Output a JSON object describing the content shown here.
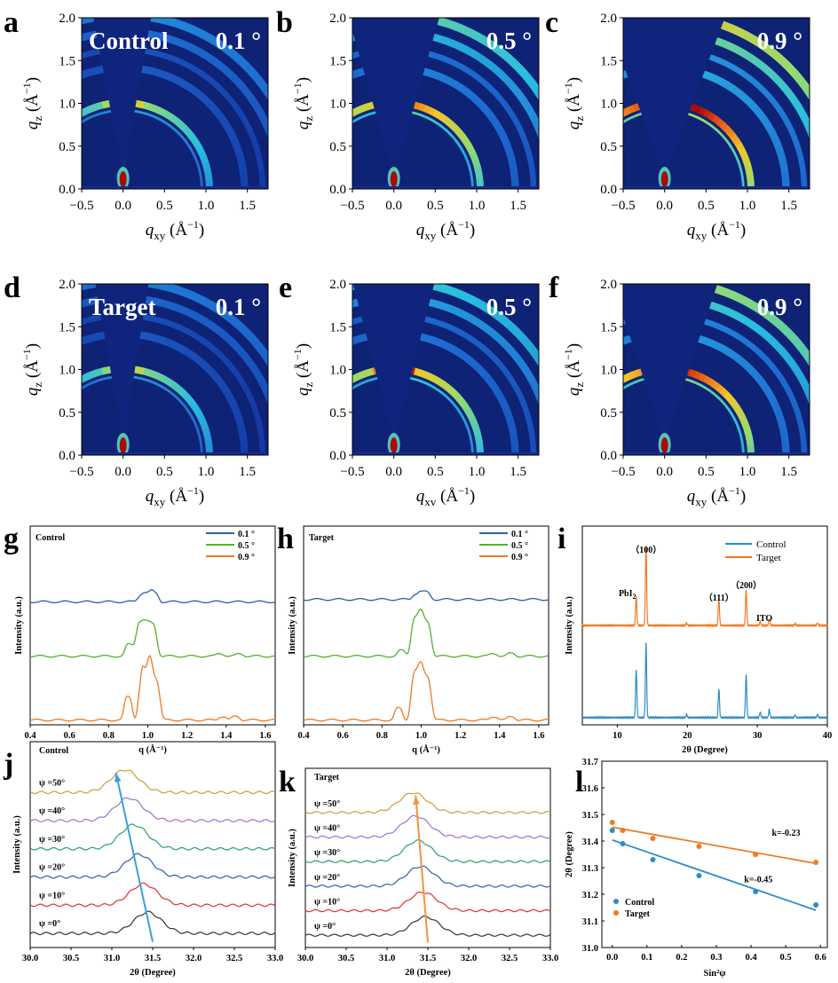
{
  "chart_data": [
    {
      "panel": "a",
      "type": "heatmap",
      "overlay": [
        "Control",
        "0.1 °"
      ],
      "incidence_deg": 0.1,
      "intensity": 0.35,
      "xlabel": "q_xy (Å^-1)",
      "ylabel": "q_z (Å^-1)",
      "xlim": [
        -0.5,
        1.75
      ],
      "ylim": [
        0,
        2.0
      ],
      "xticks": [
        "−0.5",
        "0.0",
        "0.5",
        "1.0",
        "1.5"
      ],
      "yticks": [
        "0.0",
        "0.5",
        "1.0",
        "1.5",
        "2.0"
      ]
    },
    {
      "panel": "b",
      "type": "heatmap",
      "overlay": [
        "",
        "0.5 °"
      ],
      "incidence_deg": 0.5,
      "intensity": 0.7,
      "xlabel": "q_xy (Å^-1)",
      "ylabel": "q_z (Å^-1)",
      "xlim": [
        -0.5,
        1.75
      ],
      "ylim": [
        0,
        2.0
      ],
      "xticks": [
        "−0.5",
        "0.0",
        "0.5",
        "1.0",
        "1.5"
      ],
      "yticks": [
        "0.0",
        "0.5",
        "1.0",
        "1.5",
        "2.0"
      ]
    },
    {
      "panel": "c",
      "type": "heatmap",
      "overlay": [
        "",
        "0.9 °"
      ],
      "incidence_deg": 0.9,
      "intensity": 1.0,
      "xlabel": "q_xy (Å^-1)",
      "ylabel": "q_z (Å^-1)",
      "xlim": [
        -0.5,
        1.75
      ],
      "ylim": [
        0,
        2.0
      ],
      "xticks": [
        "−0.5",
        "0.0",
        "0.5",
        "1.0",
        "1.5"
      ],
      "yticks": [
        "0.0",
        "0.5",
        "1.0",
        "1.5",
        "2.0"
      ]
    },
    {
      "panel": "d",
      "type": "heatmap",
      "overlay": [
        "Target",
        "0.1 °"
      ],
      "incidence_deg": 0.1,
      "intensity": 0.3,
      "xlabel": "q_xy (Å^-1)",
      "ylabel": "q_z (Å^-1)",
      "xlim": [
        -0.5,
        1.75
      ],
      "ylim": [
        0,
        2.0
      ],
      "xticks": [
        "−0.5",
        "0.0",
        "0.5",
        "1.0",
        "1.5"
      ],
      "yticks": [
        "0.0",
        "0.5",
        "1.0",
        "1.5",
        "2.0"
      ]
    },
    {
      "panel": "e",
      "type": "heatmap",
      "overlay": [
        "",
        "0.5 °"
      ],
      "incidence_deg": 0.5,
      "intensity": 0.6,
      "xlabel": "q_xv (Å^-1)",
      "ylabel": "q_z (Å^-1)",
      "xlim": [
        -0.5,
        1.75
      ],
      "ylim": [
        0,
        2.0
      ],
      "xticks": [
        "−0.5",
        "0.0",
        "0.5",
        "1.0",
        "1.5"
      ],
      "yticks": [
        "0.0",
        "0.5",
        "1.0",
        "1.5",
        "2.0"
      ]
    },
    {
      "panel": "f",
      "type": "heatmap",
      "overlay": [
        "",
        "0.9 °"
      ],
      "incidence_deg": 0.9,
      "intensity": 0.85,
      "xlabel": "q_xy (Å^-1)",
      "ylabel": "q_z (Å^-1)",
      "xlim": [
        -0.5,
        1.75
      ],
      "ylim": [
        0,
        2.0
      ],
      "xticks": [
        "−0.5",
        "0.0",
        "0.5",
        "1.0",
        "1.5"
      ],
      "yticks": [
        "0.0",
        "0.5",
        "1.0",
        "1.5",
        "2.0"
      ]
    },
    {
      "panel": "g",
      "type": "line",
      "title": "Control",
      "xlabel": "q (Å⁻¹)",
      "ylabel": "Intensity (a.u.)",
      "xlim": [
        0.4,
        1.65
      ],
      "xticks": [
        0.4,
        0.6,
        0.8,
        1.0,
        1.2,
        1.4,
        1.6
      ],
      "legend_position": "top-right",
      "series": [
        {
          "name": "0.1 °",
          "color": "#2e5fa8",
          "offset": 2.6,
          "peaks": [
            [
              0.985,
              0.2,
              0.03
            ],
            [
              1.035,
              0.18,
              0.02
            ]
          ]
        },
        {
          "name": "0.5 °",
          "color": "#55b030",
          "offset": 1.45,
          "peaks": [
            [
              0.905,
              0.25,
              0.02
            ],
            [
              0.965,
              0.75,
              0.025
            ],
            [
              1.02,
              0.7,
              0.025
            ],
            [
              1.37,
              0.06,
              0.02
            ],
            [
              1.47,
              0.05,
              0.02
            ]
          ]
        },
        {
          "name": "0.9 °",
          "color": "#ef7a22",
          "offset": 0.1,
          "peaks": [
            [
              0.9,
              0.5,
              0.02
            ],
            [
              0.96,
              0.3,
              0.015
            ],
            [
              0.99,
              1.05,
              0.025
            ],
            [
              1.035,
              0.9,
              0.025
            ],
            [
              1.38,
              0.08,
              0.02
            ],
            [
              1.45,
              0.08,
              0.02
            ]
          ]
        }
      ]
    },
    {
      "panel": "h",
      "type": "line",
      "title": "Target",
      "xlabel": "q (Å⁻¹)",
      "ylabel": "Intensity (a.u.)",
      "xlim": [
        0.4,
        1.65
      ],
      "xticks": [
        0.4,
        0.6,
        0.8,
        1.0,
        1.2,
        1.4,
        1.6
      ],
      "legend_position": "top-right",
      "series": [
        {
          "name": "0.1 °",
          "color": "#2e5fa8",
          "offset": 2.65,
          "peaks": [
            [
              0.975,
              0.12,
              0.02
            ],
            [
              1.02,
              0.16,
              0.025
            ]
          ]
        },
        {
          "name": "0.5 °",
          "color": "#55b030",
          "offset": 1.45,
          "peaks": [
            [
              0.9,
              0.12,
              0.02
            ],
            [
              0.975,
              0.85,
              0.025
            ],
            [
              1.025,
              0.75,
              0.025
            ],
            [
              1.37,
              0.06,
              0.02
            ],
            [
              1.46,
              0.06,
              0.02
            ]
          ]
        },
        {
          "name": "0.9 °",
          "color": "#ef7a22",
          "offset": 0.1,
          "peaks": [
            [
              0.885,
              0.25,
              0.02
            ],
            [
              0.975,
              1.05,
              0.025
            ],
            [
              1.025,
              0.95,
              0.025
            ],
            [
              1.37,
              0.08,
              0.02
            ],
            [
              1.46,
              0.08,
              0.02
            ]
          ]
        }
      ]
    },
    {
      "panel": "i",
      "type": "line",
      "xlabel": "2θ (Degree)",
      "ylabel": "Intensity (a.u.)",
      "xlim": [
        5,
        40
      ],
      "xticks": [
        10,
        20,
        30,
        40
      ],
      "legend_position": "top-right",
      "annotations": [
        {
          "text": "PbI",
          "sub": "2",
          "x": 12.7
        },
        {
          "text": "（100）",
          "x": 14.1
        },
        {
          "text": "（111）",
          "x": 24.5
        },
        {
          "text": "（200）",
          "x": 28.4
        },
        {
          "text": "ITO",
          "x": 31.0
        }
      ],
      "series": [
        {
          "name": "Control",
          "color": "#2c8dc6",
          "offset": 0.3,
          "peaks": [
            [
              12.7,
              2.0
            ],
            [
              14.1,
              3.1
            ],
            [
              19.9,
              0.12
            ],
            [
              24.5,
              1.2
            ],
            [
              28.4,
              1.75
            ],
            [
              30.4,
              0.22
            ],
            [
              31.7,
              0.35
            ],
            [
              35.4,
              0.1
            ],
            [
              38.6,
              0.12
            ]
          ]
        },
        {
          "name": "Target",
          "color": "#ef7a22",
          "offset": 4.1,
          "peaks": [
            [
              12.7,
              1.2
            ],
            [
              14.1,
              3.3
            ],
            [
              19.9,
              0.1
            ],
            [
              24.5,
              1.1
            ],
            [
              28.4,
              1.45
            ],
            [
              30.4,
              0.15
            ],
            [
              31.7,
              0.3
            ],
            [
              35.4,
              0.08
            ],
            [
              38.6,
              0.1
            ]
          ]
        }
      ]
    },
    {
      "panel": "j",
      "type": "line",
      "title": "Control",
      "xlabel": "2θ (Degree)",
      "ylabel": "Intensity (a.u.)",
      "xlim": [
        30.0,
        33.0
      ],
      "xticks": [
        "30.0",
        "30.5",
        "31.0",
        "31.5",
        "32.0",
        "32.5",
        "33.0"
      ],
      "arrow_color": "#3aa0d8",
      "arrow": [
        [
          31.5,
          0.2
        ],
        [
          31.05,
          6.2
        ]
      ],
      "series": [
        {
          "name": "ψ =0°",
          "color": "#333333",
          "offset": 0.5,
          "peak": 31.44,
          "height": 0.75
        },
        {
          "name": "ψ =10°",
          "color": "#e03030",
          "offset": 1.5,
          "peak": 31.39,
          "height": 0.75
        },
        {
          "name": "ψ =20°",
          "color": "#2e5fa8",
          "offset": 2.5,
          "peak": 31.33,
          "height": 0.8
        },
        {
          "name": "ψ =30°",
          "color": "#2aa060",
          "offset": 3.5,
          "peak": 31.27,
          "height": 0.85
        },
        {
          "name": "ψ =40°",
          "color": "#a070c8",
          "offset": 4.5,
          "peak": 31.21,
          "height": 0.8
        },
        {
          "name": "ψ =50°",
          "color": "#c8a030",
          "offset": 5.5,
          "peak": 31.16,
          "height": 0.8
        }
      ]
    },
    {
      "panel": "k",
      "type": "line",
      "title": "Target",
      "xlabel": "2θ (Degree)",
      "ylabel": "Intensity (a.u.)",
      "xlim": [
        30.0,
        33.0
      ],
      "xticks": [
        "30.0",
        "30.5",
        "31.0",
        "31.5",
        "32.0",
        "32.5",
        "33.0"
      ],
      "arrow_color": "#ef9440",
      "arrow": [
        [
          31.5,
          0.2
        ],
        [
          31.35,
          6.2
        ]
      ],
      "series": [
        {
          "name": "ψ =0°",
          "color": "#333333",
          "offset": 0.5,
          "peak": 31.47,
          "height": 0.75
        },
        {
          "name": "ψ =10°",
          "color": "#e03030",
          "offset": 1.5,
          "peak": 31.44,
          "height": 0.75
        },
        {
          "name": "ψ =20°",
          "color": "#2e5fa8",
          "offset": 2.5,
          "peak": 31.41,
          "height": 0.8
        },
        {
          "name": "ψ =30°",
          "color": "#2aa060",
          "offset": 3.5,
          "peak": 31.38,
          "height": 0.85
        },
        {
          "name": "ψ =40°",
          "color": "#a070c8",
          "offset": 4.5,
          "peak": 31.35,
          "height": 0.85
        },
        {
          "name": "ψ =50°",
          "color": "#c8a030",
          "offset": 5.5,
          "peak": 31.32,
          "height": 0.8
        }
      ]
    },
    {
      "panel": "l",
      "type": "scatter",
      "xlabel": "Sin²ψ",
      "ylabel": "2θ (Degree)",
      "xlim": [
        -0.03,
        0.62
      ],
      "ylim": [
        31.0,
        31.7
      ],
      "xticks": [
        "0.0",
        "0.1",
        "0.2",
        "0.3",
        "0.4",
        "0.5",
        "0.6"
      ],
      "yticks": [
        "31.0",
        "31.1",
        "31.2",
        "31.3",
        "31.4",
        "31.5",
        "31.6",
        "31.7"
      ],
      "legend_position": "bottom-left",
      "series": [
        {
          "name": "Control",
          "color": "#2c8dc6",
          "x": [
            0.0,
            0.03,
            0.117,
            0.25,
            0.413,
            0.587
          ],
          "y": [
            31.44,
            31.39,
            31.33,
            31.27,
            31.21,
            31.16
          ],
          "fit_label": "k=-0.45",
          "fit": [
            [
              0.0,
              31.404
            ],
            [
              0.587,
              31.14
            ]
          ]
        },
        {
          "name": "Target",
          "color": "#ef7a22",
          "x": [
            0.0,
            0.03,
            0.117,
            0.25,
            0.413,
            0.587
          ],
          "y": [
            31.47,
            31.44,
            31.41,
            31.38,
            31.35,
            31.32
          ],
          "fit_label": "k=-0.23",
          "fit": [
            [
              0.0,
              31.452
            ],
            [
              0.587,
              31.316
            ]
          ]
        }
      ]
    }
  ]
}
